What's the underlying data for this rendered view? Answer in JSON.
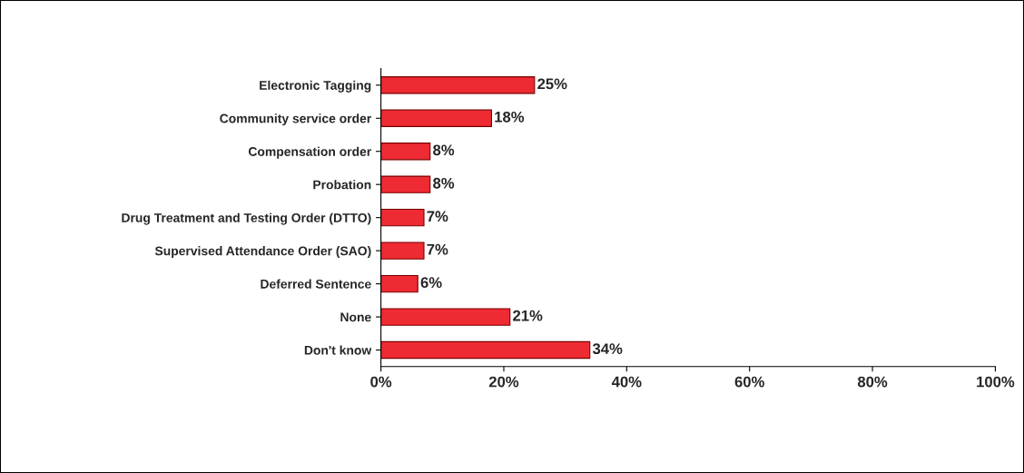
{
  "chart_data": {
    "type": "bar",
    "orientation": "horizontal",
    "categories": [
      "Electronic Tagging",
      "Community service order",
      "Compensation order",
      "Probation",
      "Drug Treatment and Testing Order (DTTO)",
      "Supervised Attendance Order (SAO)",
      "Deferred Sentence",
      "None",
      "Don't know"
    ],
    "values": [
      25,
      18,
      8,
      8,
      7,
      7,
      6,
      21,
      34
    ],
    "value_labels": [
      "25%",
      "18%",
      "8%",
      "8%",
      "7%",
      "7%",
      "6%",
      "21%",
      "34%"
    ],
    "color": "#ee2a33",
    "xlim": [
      0,
      100
    ],
    "xticks": [
      {
        "value": 0,
        "label": "0%"
      },
      {
        "value": 20,
        "label": "20%"
      },
      {
        "value": 40,
        "label": "40%"
      },
      {
        "value": 60,
        "label": "60%"
      },
      {
        "value": 80,
        "label": "80%"
      },
      {
        "value": 100,
        "label": "100%"
      }
    ],
    "grid": false
  }
}
